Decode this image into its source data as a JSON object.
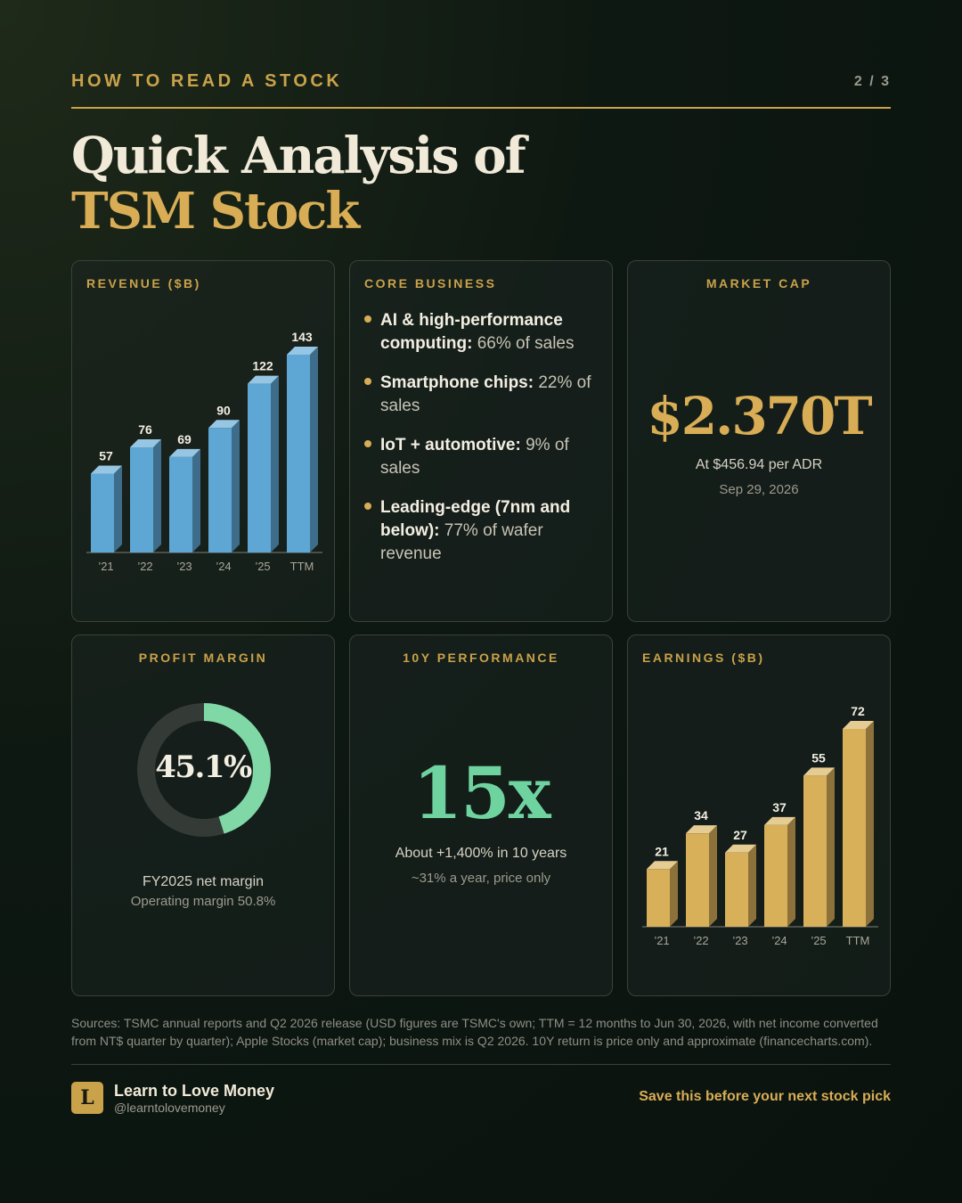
{
  "header": {
    "kicker": "HOW TO READ A STOCK",
    "page": "2 / 3"
  },
  "title": {
    "line1": "Quick Analysis of",
    "line2": "TSM Stock"
  },
  "revenue": {
    "label": "REVENUE ($B)"
  },
  "core_business": {
    "label": "CORE BUSINESS",
    "items": [
      {
        "bold": "AI & high-performance computing:",
        "rest": " 66% of sales"
      },
      {
        "bold": "Smartphone chips:",
        "rest": " 22% of sales"
      },
      {
        "bold": "IoT + automotive:",
        "rest": " 9% of sales"
      },
      {
        "bold": "Leading-edge (7nm and below):",
        "rest": " 77% of wafer revenue"
      }
    ]
  },
  "market_cap": {
    "label": "MARKET CAP",
    "value": "$2.370T",
    "per_share": "At $456.94 per ADR",
    "date": "Sep 29, 2026"
  },
  "profit_margin": {
    "label": "PROFIT MARGIN",
    "value": "45.1%",
    "fraction": 0.451,
    "caption": "FY2025 net margin",
    "sub": "Operating margin 50.8%"
  },
  "performance": {
    "label": "10Y PERFORMANCE",
    "value": "15x",
    "caption": "About +1,400% in 10 years",
    "sub": "~31% a year, price only"
  },
  "earnings": {
    "label": "EARNINGS ($B)"
  },
  "chart_data": [
    {
      "type": "bar",
      "title": "REVENUE ($B)",
      "categories": [
        "’21",
        "’22",
        "’23",
        "’24",
        "’25",
        "TTM"
      ],
      "values": [
        57,
        76,
        69,
        90,
        122,
        143
      ],
      "color": "#5ea7d4"
    },
    {
      "type": "bar",
      "title": "EARNINGS ($B)",
      "categories": [
        "’21",
        "’22",
        "’23",
        "’24",
        "’25",
        "TTM"
      ],
      "values": [
        21,
        34,
        27,
        37,
        55,
        72
      ],
      "color": "#d7b059"
    }
  ],
  "colors": {
    "accent_gold": "#c9a24a",
    "accent_green": "#6fd3a0",
    "bar_blue": "#5ea7d4",
    "bar_gold": "#d7b059"
  },
  "sources": "Sources: TSMC annual reports and Q2 2026 release (USD figures are TSMC's own; TTM = 12 months to Jun 30, 2026, with net income converted from NT$ quarter by quarter); Apple Stocks (market cap); business mix is Q2 2026. 10Y return is price only and approximate (financecharts.com).",
  "footer": {
    "logo_letter": "L",
    "brand": "Learn to Love Money",
    "handle": "@learntolovemoney",
    "cta": "Save this before your next stock pick"
  }
}
